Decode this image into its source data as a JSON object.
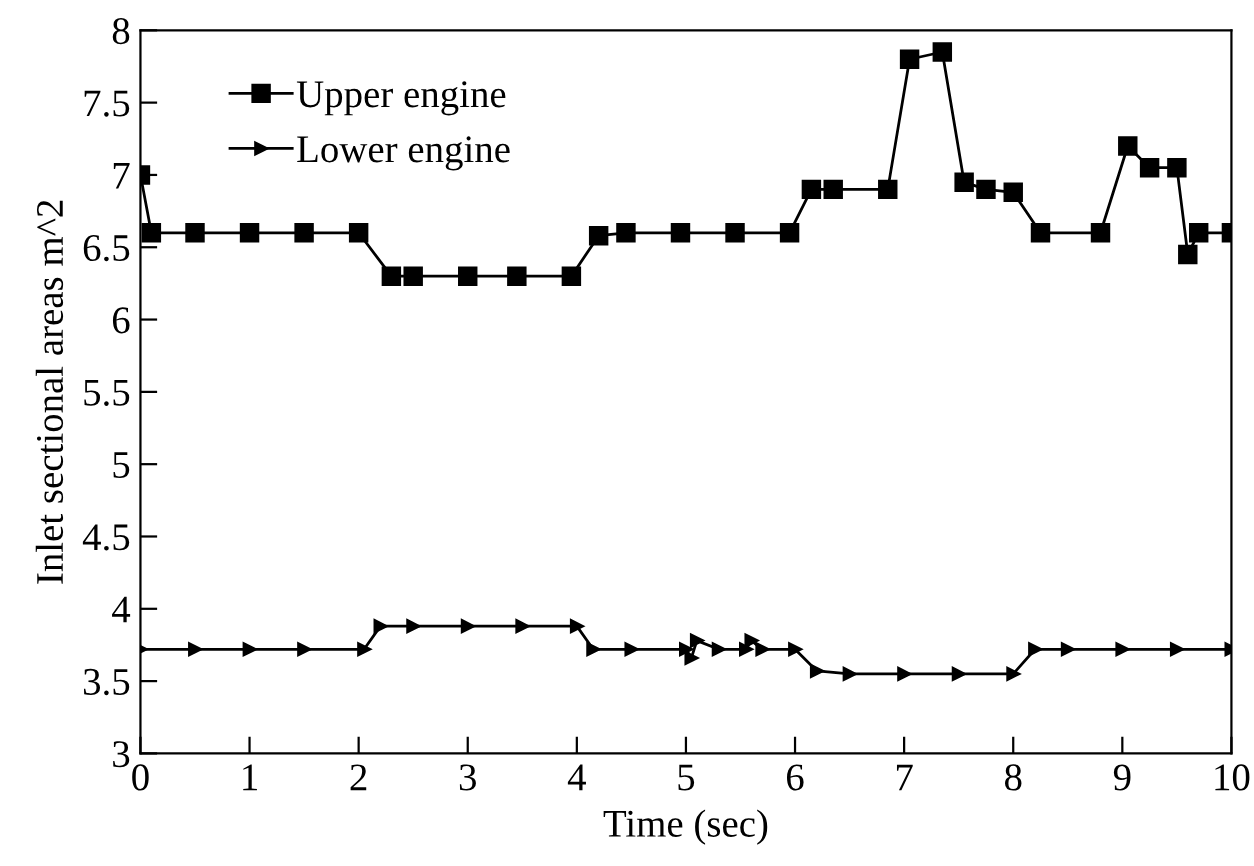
{
  "chart_data": {
    "type": "line",
    "xlabel": "Time (sec)",
    "ylabel": "Inlet sectional areas m^2",
    "xlim": [
      0,
      10
    ],
    "xticks": [
      0,
      1,
      2,
      3,
      4,
      5,
      6,
      7,
      8,
      9,
      10
    ],
    "ylim": [
      3,
      8
    ],
    "yticks": [
      3,
      3.5,
      4,
      4.5,
      5,
      5.5,
      6,
      6.5,
      7,
      7.5,
      8
    ],
    "grid": false,
    "legend": "top left",
    "line_style": "solid",
    "series": [
      {
        "name": "Upper engine",
        "color": "#000000",
        "marker": "square",
        "x": [
          0,
          0.1,
          0.5,
          1,
          1.5,
          2,
          2.3,
          2.5,
          3,
          3.45,
          3.95,
          4.2,
          4.45,
          4.95,
          5.45,
          5.95,
          6.15,
          6.35,
          6.85,
          7.05,
          7.35,
          7.55,
          7.75,
          8.0,
          8.25,
          8.8,
          9.05,
          9.25,
          9.5,
          9.6,
          9.7,
          10
        ],
        "values": [
          7.0,
          6.6,
          6.6,
          6.6,
          6.6,
          6.6,
          6.3,
          6.3,
          6.3,
          6.3,
          6.3,
          6.58,
          6.6,
          6.6,
          6.6,
          6.6,
          6.9,
          6.9,
          6.9,
          7.8,
          7.85,
          6.95,
          6.9,
          6.88,
          6.6,
          6.6,
          7.2,
          7.05,
          7.05,
          6.45,
          6.6,
          6.6
        ]
      },
      {
        "name": "Lower engine",
        "color": "#000000",
        "marker": "triangle",
        "x": [
          0,
          0.5,
          1,
          1.5,
          2.05,
          2.2,
          2.5,
          3,
          3.5,
          4.0,
          4.15,
          4.5,
          5.0,
          5.05,
          5.1,
          5.3,
          5.55,
          5.6,
          5.7,
          6.0,
          6.2,
          6.5,
          7,
          7.5,
          8.0,
          8.2,
          8.5,
          9,
          9.5,
          10
        ],
        "values": [
          3.72,
          3.72,
          3.72,
          3.72,
          3.72,
          3.88,
          3.88,
          3.88,
          3.88,
          3.88,
          3.72,
          3.72,
          3.72,
          3.66,
          3.78,
          3.72,
          3.72,
          3.78,
          3.72,
          3.72,
          3.57,
          3.55,
          3.55,
          3.55,
          3.55,
          3.72,
          3.72,
          3.72,
          3.72,
          3.72
        ]
      }
    ]
  }
}
